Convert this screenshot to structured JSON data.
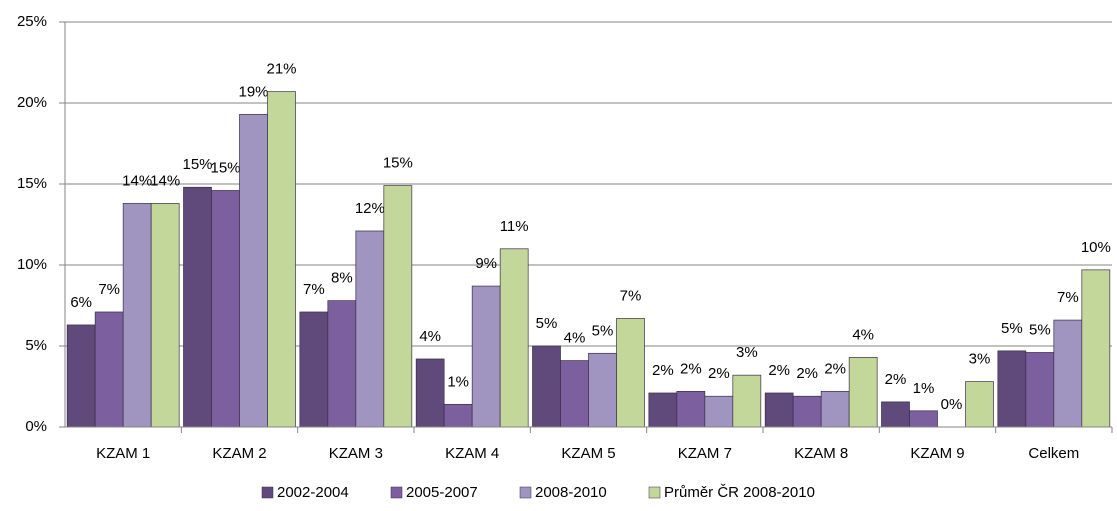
{
  "chart_data": {
    "type": "bar",
    "categories": [
      "KZAM 1",
      "KZAM 2",
      "KZAM 3",
      "KZAM 4",
      "KZAM 5",
      "KZAM 7",
      "KZAM 8",
      "KZAM 9",
      "Celkem"
    ],
    "series": [
      {
        "name": "2002-2004",
        "color": "#604a7b",
        "values": [
          6.3,
          14.8,
          7.1,
          4.2,
          5.0,
          2.1,
          2.1,
          1.55,
          4.7
        ],
        "value_labels": [
          "6%",
          "15%",
          "7%",
          "4%",
          "5%",
          "2%",
          "2%",
          "2%",
          "5%"
        ]
      },
      {
        "name": "2005-2007",
        "color": "#7c5f9f",
        "values": [
          7.1,
          14.6,
          7.8,
          1.4,
          4.1,
          2.2,
          1.9,
          1.0,
          4.6
        ],
        "value_labels": [
          "7%",
          "15%",
          "8%",
          "1%",
          "4%",
          "2%",
          "2%",
          "1%",
          "5%"
        ]
      },
      {
        "name": "2008-2010",
        "color": "#a094c0",
        "values": [
          13.8,
          19.3,
          12.1,
          8.7,
          4.55,
          1.9,
          2.2,
          0,
          6.6
        ],
        "value_labels": [
          "14%",
          "19%",
          "12%",
          "9%",
          "5%",
          "2%",
          "2%",
          "0%",
          "7%"
        ]
      },
      {
        "name": "Průměr ČR 2008-2010",
        "color": "#c4d79b",
        "values": [
          13.8,
          20.7,
          14.9,
          11.0,
          6.7,
          3.2,
          4.3,
          2.8,
          9.7
        ],
        "value_labels": [
          "14%",
          "21%",
          "15%",
          "11%",
          "7%",
          "3%",
          "4%",
          "3%",
          "10%"
        ]
      }
    ],
    "ylim": [
      0,
      25
    ],
    "yticks": [
      {
        "value": 0,
        "label": "0%"
      },
      {
        "value": 5,
        "label": "5%"
      },
      {
        "value": 10,
        "label": "10%"
      },
      {
        "value": 15,
        "label": "15%"
      },
      {
        "value": 20,
        "label": "20%"
      },
      {
        "value": 25,
        "label": "25%"
      }
    ],
    "grid": true,
    "legend": "bottom"
  }
}
